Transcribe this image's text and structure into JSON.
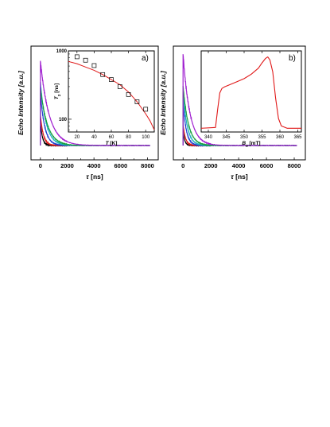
{
  "chart_data": [
    {
      "type": "line",
      "panel": "a",
      "label": "a)",
      "xlabel_symbol": "τ",
      "xlabel_unit": " [ns]",
      "ylabel": "Echo Intensity [a.u.]",
      "xlim": [
        -700,
        8800
      ],
      "x_ticks": [
        0,
        2000,
        4000,
        6000,
        8000
      ],
      "x_tick_labels": [
        "0",
        "2000",
        "4000",
        "6000",
        "8000"
      ],
      "series": [
        {
          "color": "#000000",
          "peak": 0.25,
          "tau": 150
        },
        {
          "color": "#e01818",
          "peak": 0.32,
          "tau": 220
        },
        {
          "color": "#2040d0",
          "peak": 0.55,
          "tau": 320
        },
        {
          "color": "#20b0c0",
          "peak": 0.66,
          "tau": 420
        },
        {
          "color": "#18a040",
          "peak": 0.6,
          "tau": 520
        },
        {
          "color": "#a020d0",
          "peak": 0.88,
          "tau": 650
        }
      ],
      "inset": {
        "type": "scatter",
        "xlabel_symbol": "T",
        "xlabel_unit": " [K]",
        "ylabel_symbol": "T",
        "ylabel_sub": "2",
        "ylabel_unit": " [ns]",
        "xlim": [
          10,
          110
        ],
        "ylim": [
          65,
          1000
        ],
        "y_scale": "log",
        "x_ticks": [
          20,
          40,
          60,
          80,
          100
        ],
        "x_tick_labels": [
          "20",
          "40",
          "60",
          "80",
          "100"
        ],
        "y_ticks": [
          100,
          1000
        ],
        "y_tick_labels": [
          "100",
          "1000"
        ],
        "points": {
          "x": [
            20,
            30,
            40,
            50,
            60,
            70,
            80,
            90,
            100
          ],
          "y": [
            820,
            730,
            610,
            450,
            380,
            300,
            230,
            180,
            140
          ]
        },
        "fit": {
          "color": "#e01818",
          "x": [
            10,
            20,
            30,
            40,
            50,
            60,
            70,
            80,
            90,
            100,
            105,
            110
          ],
          "y": [
            700,
            650,
            580,
            520,
            450,
            380,
            320,
            250,
            180,
            120,
            95,
            70
          ]
        }
      }
    },
    {
      "type": "line",
      "panel": "b",
      "label": "b)",
      "xlabel_symbol": "τ",
      "xlabel_unit": " [ns]",
      "ylabel": "Echo Intensity [a.u.]",
      "xlim": [
        -700,
        8800
      ],
      "x_ticks": [
        0,
        2000,
        4000,
        6000,
        8000
      ],
      "x_tick_labels": [
        "0",
        "2000",
        "4000",
        "6000",
        "8000"
      ],
      "series": [
        {
          "color": "#000000",
          "peak": 0.15,
          "tau": 120
        },
        {
          "color": "#e01818",
          "peak": 0.22,
          "tau": 170
        },
        {
          "color": "#2040d0",
          "peak": 0.45,
          "tau": 230
        },
        {
          "color": "#20b0c0",
          "peak": 0.55,
          "tau": 300
        },
        {
          "color": "#18a040",
          "peak": 0.62,
          "tau": 380
        },
        {
          "color": "#a020d0",
          "peak": 0.95,
          "tau": 480
        }
      ],
      "inset": {
        "type": "line",
        "xlabel_symbol": "B",
        "xlabel_sub": "0",
        "xlabel_unit": " [mT]",
        "xlim": [
          338,
          366
        ],
        "ylim": [
          0,
          1.08
        ],
        "x_ticks": [
          340,
          345,
          350,
          355,
          360,
          365
        ],
        "x_tick_labels": [
          "340",
          "345",
          "350",
          "355",
          "360",
          "365"
        ],
        "spectrum": {
          "color": "#e01818",
          "x": [
            338,
            342,
            342.6,
            343.2,
            343.8,
            344.5,
            346,
            348,
            350,
            352,
            354,
            355,
            356,
            356.6,
            357.2,
            358,
            358.8,
            359.6,
            360.4,
            362,
            366
          ],
          "y": [
            0.05,
            0.06,
            0.3,
            0.52,
            0.58,
            0.6,
            0.63,
            0.67,
            0.71,
            0.77,
            0.85,
            0.92,
            0.98,
            1.0,
            0.96,
            0.8,
            0.45,
            0.18,
            0.08,
            0.05,
            0.05
          ]
        }
      }
    }
  ]
}
